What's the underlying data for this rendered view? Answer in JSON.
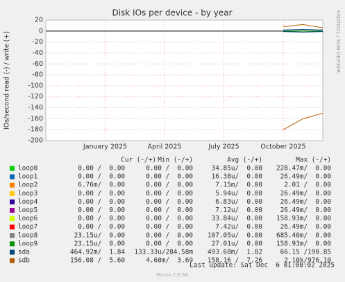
{
  "chart_data": {
    "type": "line",
    "title": "Disk IOs per device - by year",
    "ylabel": "IOs/second read (-) / write (+)",
    "side_text": "RRDTOOL / TOBI OETIKER",
    "xlim": [
      "2024-10",
      "2025-12"
    ],
    "xticks": [
      {
        "value": "2025-01",
        "label": "January 2025"
      },
      {
        "value": "2025-04",
        "label": "April 2025"
      },
      {
        "value": "2025-07",
        "label": "July 2025"
      },
      {
        "value": "2025-10",
        "label": "October 2025"
      }
    ],
    "ylim": [
      -200,
      20
    ],
    "yticks": [
      20,
      0,
      -20,
      -40,
      -60,
      -80,
      -100,
      -120,
      -140,
      -160,
      -180,
      -200
    ],
    "grid": true,
    "x": [
      "2025-10",
      "2025-11",
      "2025-12"
    ],
    "table_headers": [
      "Cur (-/+)",
      "Min (-/+)",
      "Avg (-/+)",
      "Max (-/+)"
    ],
    "series": [
      {
        "name": "loop0",
        "color": "#00cc00",
        "values": [
          0,
          0,
          0
        ],
        "read": [
          0,
          0,
          0
        ],
        "table": [
          "0.00 /  0.00",
          "0.00 /  0.00",
          "34.85u/  0.00",
          "228.47m/  0.00"
        ]
      },
      {
        "name": "loop1",
        "color": "#0066b3",
        "values": [
          0,
          0,
          0
        ],
        "read": [
          0,
          0,
          0
        ],
        "table": [
          "0.00 /  0.00",
          "0.00 /  0.00",
          "16.38u/  0.00",
          "26.49m/  0.00"
        ]
      },
      {
        "name": "loop2",
        "color": "#ff8000",
        "values": [
          0,
          0,
          0
        ],
        "read": [
          0,
          0,
          0
        ],
        "table": [
          "6.76m/  0.00",
          "0.00 /  0.00",
          "7.15m/  0.00",
          "2.01 /  0.00"
        ]
      },
      {
        "name": "loop3",
        "color": "#ffcc00",
        "values": [
          0,
          0,
          0
        ],
        "read": [
          0,
          0,
          0
        ],
        "table": [
          "0.00 /  0.00",
          "0.00 /  0.00",
          "5.94u/  0.00",
          "26.49m/  0.00"
        ]
      },
      {
        "name": "loop4",
        "color": "#330099",
        "values": [
          0,
          0,
          0
        ],
        "read": [
          0,
          0,
          0
        ],
        "table": [
          "0.00 /  0.00",
          "0.00 /  0.00",
          "6.83u/  0.00",
          "26.49m/  0.00"
        ]
      },
      {
        "name": "loop5",
        "color": "#990099",
        "values": [
          0,
          0,
          0
        ],
        "read": [
          0,
          0,
          0
        ],
        "table": [
          "0.00 /  0.00",
          "0.00 /  0.00",
          "7.12u/  0.00",
          "26.49m/  0.00"
        ]
      },
      {
        "name": "loop6",
        "color": "#ccff00",
        "values": [
          0,
          0,
          0
        ],
        "read": [
          0,
          0,
          0
        ],
        "table": [
          "0.00 /  0.00",
          "0.00 /  0.00",
          "33.84u/  0.00",
          "158.93m/  0.00"
        ]
      },
      {
        "name": "loop7",
        "color": "#ff0000",
        "values": [
          0,
          0,
          0
        ],
        "read": [
          0,
          0,
          0
        ],
        "table": [
          "0.00 /  0.00",
          "0.00 /  0.00",
          "7.42u/  0.00",
          "26.49m/  0.00"
        ]
      },
      {
        "name": "loop8",
        "color": "#808080",
        "values": [
          0,
          0,
          0
        ],
        "read": [
          0,
          0,
          0
        ],
        "table": [
          "23.15u/  0.00",
          "0.00 /  0.00",
          "107.05u/  0.00",
          "685.40m/  0.00"
        ]
      },
      {
        "name": "loop9",
        "color": "#008f00",
        "values": [
          0,
          0,
          0
        ],
        "read": [
          0,
          0,
          0
        ],
        "table": [
          "23.15u/  0.00",
          "0.00 /  0.00",
          "27.01u/  0.00",
          "158.93m/  0.00"
        ]
      },
      {
        "name": "sda",
        "color": "#00487d",
        "values": [
          2,
          3,
          2
        ],
        "read": [
          -1,
          -2,
          -1
        ],
        "table": [
          "464.92m/  1.84",
          "133.33u/284.58m",
          "493.68m/  1.82",
          "66.15 /190.85"
        ]
      },
      {
        "name": "sdb",
        "color": "#b35a00",
        "values": [
          8,
          12,
          6
        ],
        "read": [
          -180,
          -160,
          -150
        ],
        "table": [
          "156.08 /  5.60",
          "4.60m/  3.69",
          "158.16 /  7.26",
          "2.10k/976.10"
        ]
      }
    ],
    "last_update": "Last update: Sat Dec  6 01:00:02 2025",
    "footer": "Munin 2.0.56"
  }
}
